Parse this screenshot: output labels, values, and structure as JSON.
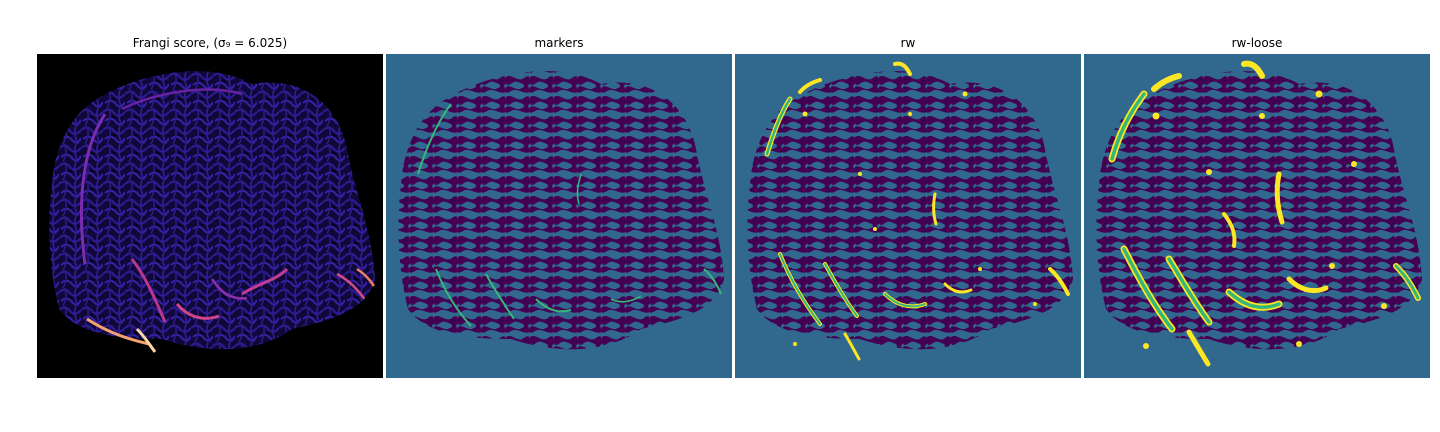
{
  "figure": {
    "panels": [
      {
        "title": "Frangi score, (σ₉ = 6.025)",
        "image": "frangi-score-image",
        "colors": {
          "background": "#000000",
          "ridge": "#2e1a96",
          "highlight_mid": "#c33a9a",
          "highlight_peak": "#fcd7a4"
        }
      },
      {
        "title": "markers",
        "image": "markers-image",
        "colors": {
          "background": "#31688e",
          "tissue": "#440154",
          "marker": "#35b779"
        }
      },
      {
        "title": "rw",
        "image": "rw-image",
        "colors": {
          "background": "#31688e",
          "tissue": "#440154",
          "vessel": "#35b779",
          "edge": "#fde725"
        }
      },
      {
        "title": "rw-loose",
        "image": "rw-loose-image",
        "colors": {
          "background": "#31688e",
          "tissue": "#440154",
          "vessel": "#35b779",
          "edge": "#fde725"
        }
      }
    ]
  }
}
